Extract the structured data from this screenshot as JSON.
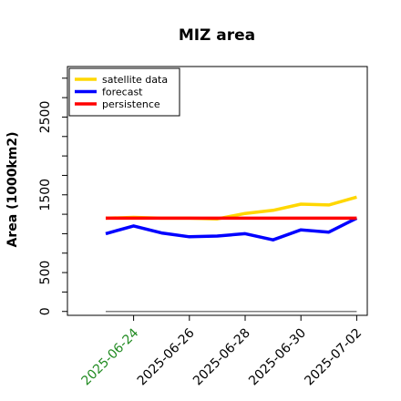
{
  "chart_data": {
    "type": "line",
    "title": "MIZ area",
    "xlabel": "",
    "ylabel": "Area (1000km2)",
    "categories": [
      "2025-06-23",
      "2025-06-24",
      "2025-06-25",
      "2025-06-26",
      "2025-06-27",
      "2025-06-28",
      "2025-06-29",
      "2025-06-30",
      "2025-07-01",
      "2025-07-02"
    ],
    "xticks": [
      "2025-06-24",
      "2025-06-26",
      "2025-06-28",
      "2025-06-30",
      "2025-07-02"
    ],
    "xtick_colors": [
      "#228B22",
      "#000000",
      "#000000",
      "#000000",
      "#000000"
    ],
    "ylim": [
      -50,
      3150
    ],
    "yticks": [
      0,
      500,
      1500,
      2500
    ],
    "grid": false,
    "legend": "top-left",
    "series": [
      {
        "name": "satellite data",
        "color": "#FFD700",
        "values": [
          1200,
          1210,
          1200,
          1200,
          1190,
          1260,
          1300,
          1380,
          1370,
          1470
        ]
      },
      {
        "name": "forecast",
        "color": "#0000FF",
        "values": [
          1000,
          1100,
          1010,
          960,
          970,
          1000,
          920,
          1050,
          1020,
          1200
        ]
      },
      {
        "name": "persistence",
        "color": "#FF0000",
        "values": [
          1200,
          1200,
          1200,
          1200,
          1200,
          1200,
          1200,
          1200,
          1200,
          1200
        ]
      }
    ],
    "reference_line": {
      "value": 0,
      "color": "#808080"
    }
  }
}
